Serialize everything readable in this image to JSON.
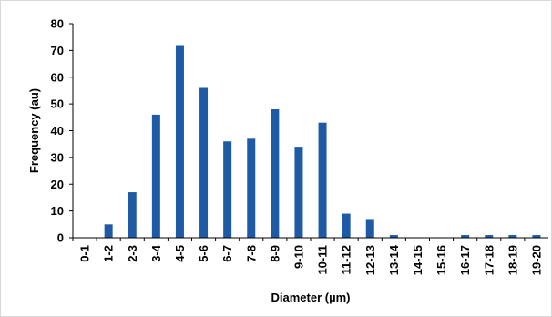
{
  "chart_data": {
    "type": "bar",
    "title": "",
    "xlabel": "Diameter (µm)",
    "ylabel": "Frequency (au)",
    "categories": [
      "0-1",
      "1-2",
      "2-3",
      "3-4",
      "4-5",
      "5-6",
      "6-7",
      "7-8",
      "8-9",
      "9-10",
      "10-11",
      "11-12",
      "12-13",
      "13-14",
      "14-15",
      "15-16",
      "16-17",
      "17-18",
      "18-19",
      "19-20"
    ],
    "values": [
      0,
      5,
      17,
      46,
      72,
      56,
      36,
      37,
      48,
      34,
      43,
      9,
      7,
      1,
      0,
      0,
      1,
      1,
      1,
      1
    ],
    "ylim": [
      0,
      80
    ],
    "yticks": [
      0,
      10,
      20,
      30,
      40,
      50,
      60,
      70,
      80
    ],
    "grid": false,
    "legend": "none",
    "bar_color": "#1f5aa6"
  }
}
